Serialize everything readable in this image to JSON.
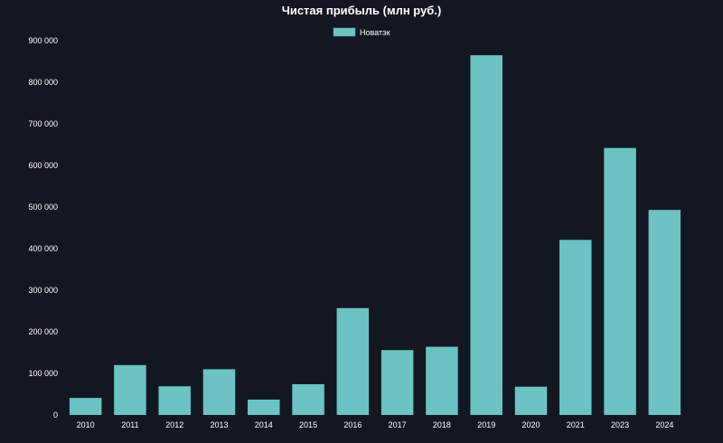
{
  "chart_data": {
    "type": "bar",
    "title": "Чистая прибыль  (млн руб.)",
    "xlabel": "",
    "ylabel": "",
    "categories": [
      "2010",
      "2011",
      "2012",
      "2013",
      "2014",
      "2015",
      "2016",
      "2017",
      "2018",
      "2019",
      "2020",
      "2021",
      "2023",
      "2024"
    ],
    "series": [
      {
        "name": "Новатэк",
        "color": "#6cc3c3",
        "values": [
          41000,
          120000,
          69000,
          110000,
          37000,
          74000,
          257000,
          156000,
          164000,
          865000,
          68000,
          421000,
          642000,
          493000
        ]
      }
    ],
    "ylim": [
      0,
      900000
    ],
    "yticks": [
      0,
      100000,
      200000,
      300000,
      400000,
      500000,
      600000,
      700000,
      800000,
      900000
    ],
    "ytick_labels": [
      "0",
      "100 000",
      "200 000",
      "300 000",
      "400 000",
      "500 000",
      "600 000",
      "700 000",
      "800 000",
      "900 000"
    ],
    "grid": false,
    "legend_position": "top-center"
  }
}
